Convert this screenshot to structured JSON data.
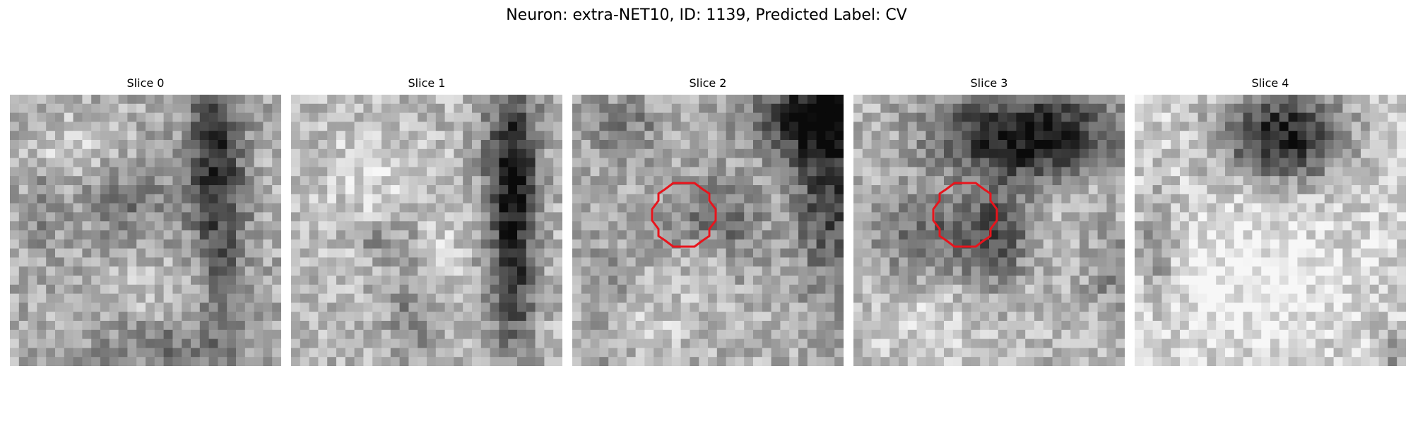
{
  "figure": {
    "title": "Neuron: extra-NET10, ID: 1139, Predicted Label: CV"
  },
  "panels": [
    {
      "label": "Slice 0",
      "roi": false
    },
    {
      "label": "Slice 1",
      "roi": false
    },
    {
      "label": "Slice 2",
      "roi": true
    },
    {
      "label": "Slice 3",
      "roi": true
    },
    {
      "label": "Slice 4",
      "roi": false
    }
  ],
  "colors": {
    "roi_outline": "#e8141c",
    "background": "#ffffff"
  },
  "image": {
    "colormap": "grayscale",
    "grid_cells": 30
  }
}
